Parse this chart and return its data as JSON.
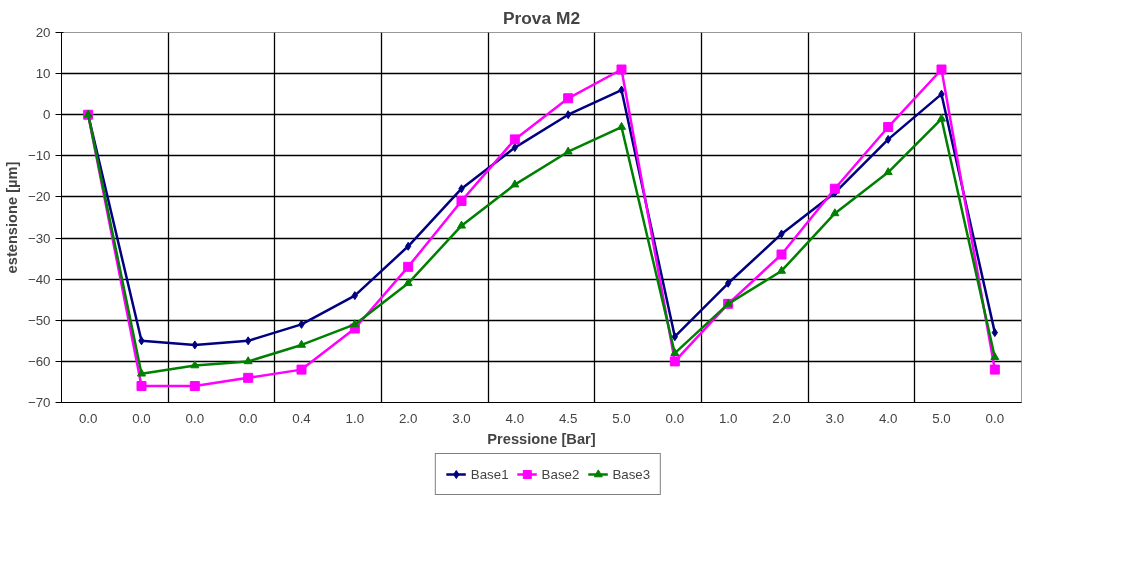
{
  "chart_data": {
    "type": "line",
    "title": "Prova M2",
    "xlabel": "Pressione [Bar]",
    "ylabel": "estensione [µm]",
    "categories": [
      "0.0",
      "0.0",
      "0.0",
      "0.0",
      "0.4",
      "1.0",
      "2.0",
      "3.0",
      "4.0",
      "4.5",
      "5.0",
      "0.0",
      "1.0",
      "2.0",
      "3.0",
      "4.0",
      "5.0",
      "0.0"
    ],
    "series": [
      {
        "name": "Base1",
        "color": "#000080",
        "marker": "diamond",
        "values": [
          0,
          -55,
          -56,
          -55,
          -51,
          -44,
          -32,
          -18,
          -8,
          0,
          6,
          -54,
          -41,
          -29,
          -19,
          -6,
          5,
          -53
        ]
      },
      {
        "name": "Base2",
        "color": "#ff00ff",
        "marker": "square",
        "values": [
          0,
          -66,
          -66,
          -64,
          -62,
          -52,
          -37,
          -21,
          -6,
          4,
          11,
          -60,
          -46,
          -34,
          -18,
          -3,
          11,
          -62
        ]
      },
      {
        "name": "Base3",
        "color": "#008000",
        "marker": "triangle",
        "values": [
          0,
          -63,
          -61,
          -60,
          -56,
          -51,
          -41,
          -27,
          -17,
          -9,
          -3,
          -58,
          -46,
          -38,
          -24,
          -14,
          -1,
          -59
        ]
      }
    ],
    "ylim": [
      -70,
      20
    ],
    "yticks": [
      -70,
      -60,
      -50,
      -40,
      -30,
      -20,
      -10,
      0,
      10,
      20
    ],
    "grid": true,
    "legend": "bottom"
  }
}
